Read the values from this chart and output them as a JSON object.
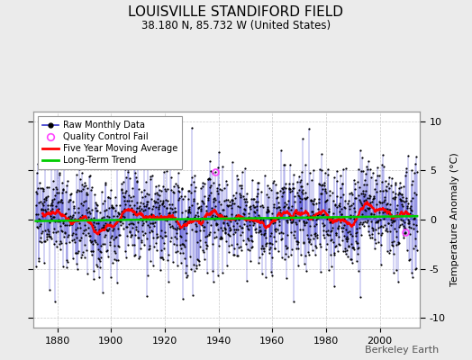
{
  "title": "LOUISVILLE STANDIFORD FIELD",
  "subtitle": "38.180 N, 85.732 W (United States)",
  "ylabel": "Temperature Anomaly (°C)",
  "watermark": "Berkeley Earth",
  "year_start": 1872,
  "year_end": 2013,
  "ylim": [
    -11,
    11
  ],
  "yticks": [
    -10,
    -5,
    0,
    5,
    10
  ],
  "xticks": [
    1880,
    1900,
    1920,
    1940,
    1960,
    1980,
    2000
  ],
  "raw_color": "#3333cc",
  "moving_avg_color": "#ff0000",
  "trend_color": "#00cc00",
  "qc_fail_color": "#ff44ff",
  "background_color": "#ebebeb",
  "plot_bg_color": "#ffffff",
  "seed": 17
}
